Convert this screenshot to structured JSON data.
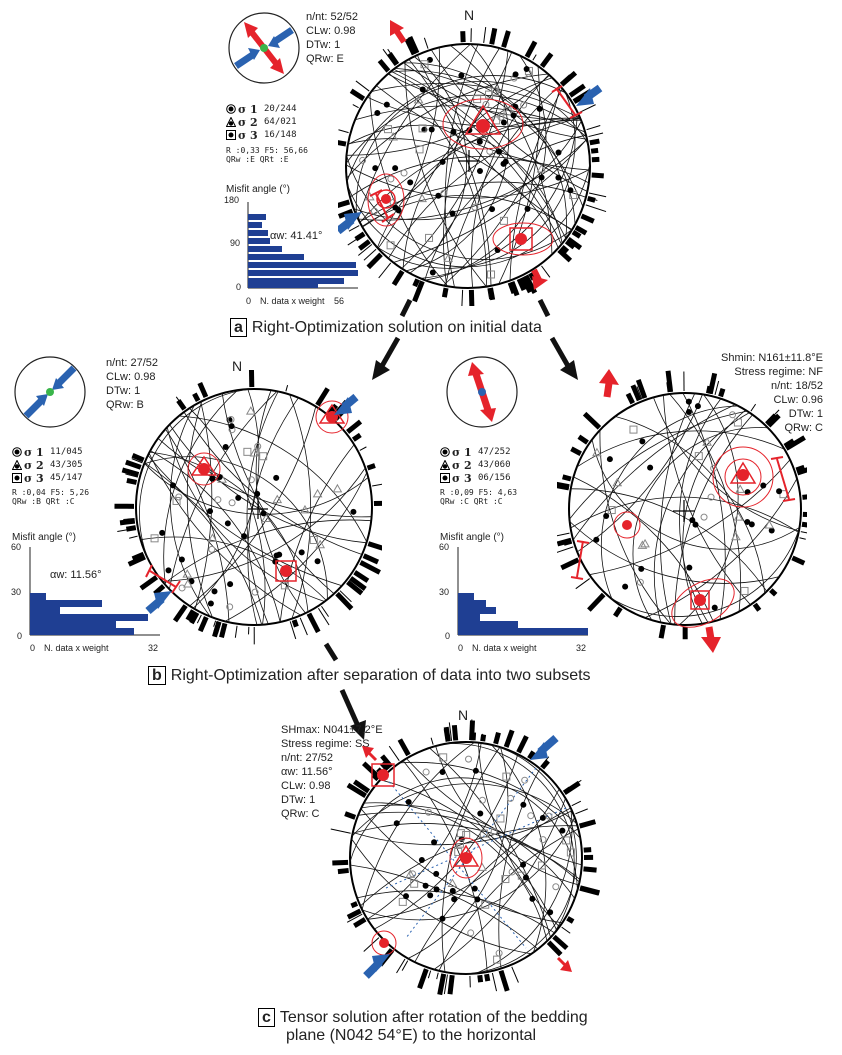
{
  "north": "N",
  "panel_a": {
    "stats": [
      "n/nt: 52/52",
      "CLw: 0.98",
      "DTw: 1",
      "QRw: E"
    ],
    "sigma": [
      {
        "label": "σ 1",
        "value": "20/244"
      },
      {
        "label": "σ 2",
        "value": "64/021"
      },
      {
        "label": "σ 3",
        "value": "16/148"
      }
    ],
    "ratio_line1": "R :0,33  F5: 56,66",
    "ratio_line2": "QRw :E  QRt :E",
    "misfit_title": "Misfit angle (°)",
    "alpha": "αw: 41.41°",
    "y_ticks": [
      "180",
      "90",
      "0"
    ],
    "x_ticks": [
      "0",
      "56"
    ],
    "x_axis": "N. data x weight",
    "caption_letter": "a",
    "caption": "Right-Optimization solution on initial data"
  },
  "panel_b_left": {
    "stats": [
      "n/nt: 27/52",
      "CLw: 0.98",
      "DTw: 1",
      "QRw: B"
    ],
    "sigma": [
      {
        "label": "σ 1",
        "value": "11/045"
      },
      {
        "label": "σ 2",
        "value": "43/305"
      },
      {
        "label": "σ 3",
        "value": "45/147"
      }
    ],
    "ratio_line1": "R :0,04  F5: 5,26",
    "ratio_line2": "QRw :B  QRt :C",
    "misfit_title": "Misfit angle (°)",
    "alpha": "αw: 11.56°",
    "y_ticks": [
      "60",
      "30",
      "0"
    ],
    "x_ticks": [
      "0",
      "32"
    ],
    "x_axis": "N. data x weight"
  },
  "panel_b_right": {
    "stats": [
      "Shmin: N161±11.8°E",
      "Stress regime: NF",
      "n/nt: 18/52",
      "CLw: 0.96",
      "DTw: 1",
      "QRw: C"
    ],
    "sigma": [
      {
        "label": "σ 1",
        "value": "47/252"
      },
      {
        "label": "σ 2",
        "value": "43/060"
      },
      {
        "label": "σ 3",
        "value": "06/156"
      }
    ],
    "ratio_line1": "R :0,09  F5: 4,63",
    "ratio_line2": "QRw :C  QRt :C",
    "misfit_title": "Misfit angle (°)",
    "y_ticks": [
      "60",
      "30",
      "0"
    ],
    "x_ticks": [
      "0",
      "32"
    ],
    "x_axis": "N. data x weight"
  },
  "panel_b_caption_letter": "b",
  "panel_b_caption": "Right-Optimization after separation of data into two subsets",
  "panel_c": {
    "stats": [
      "SHmax: N041±7.2°E",
      "Stress regime: SS",
      "n/nt: 27/52",
      "αw: 11.56°",
      "CLw: 0.98",
      "DTw: 1",
      "QRw: C"
    ],
    "caption_letter": "c",
    "caption_line1": "Tensor solution after rotation of the bedding",
    "caption_line2": "plane (N042 54°E) to the horizontal"
  },
  "colors": {
    "red": "#e5232b",
    "blue": "#2a62b0",
    "navy": "#1f3f93",
    "green": "#3ab54a"
  }
}
